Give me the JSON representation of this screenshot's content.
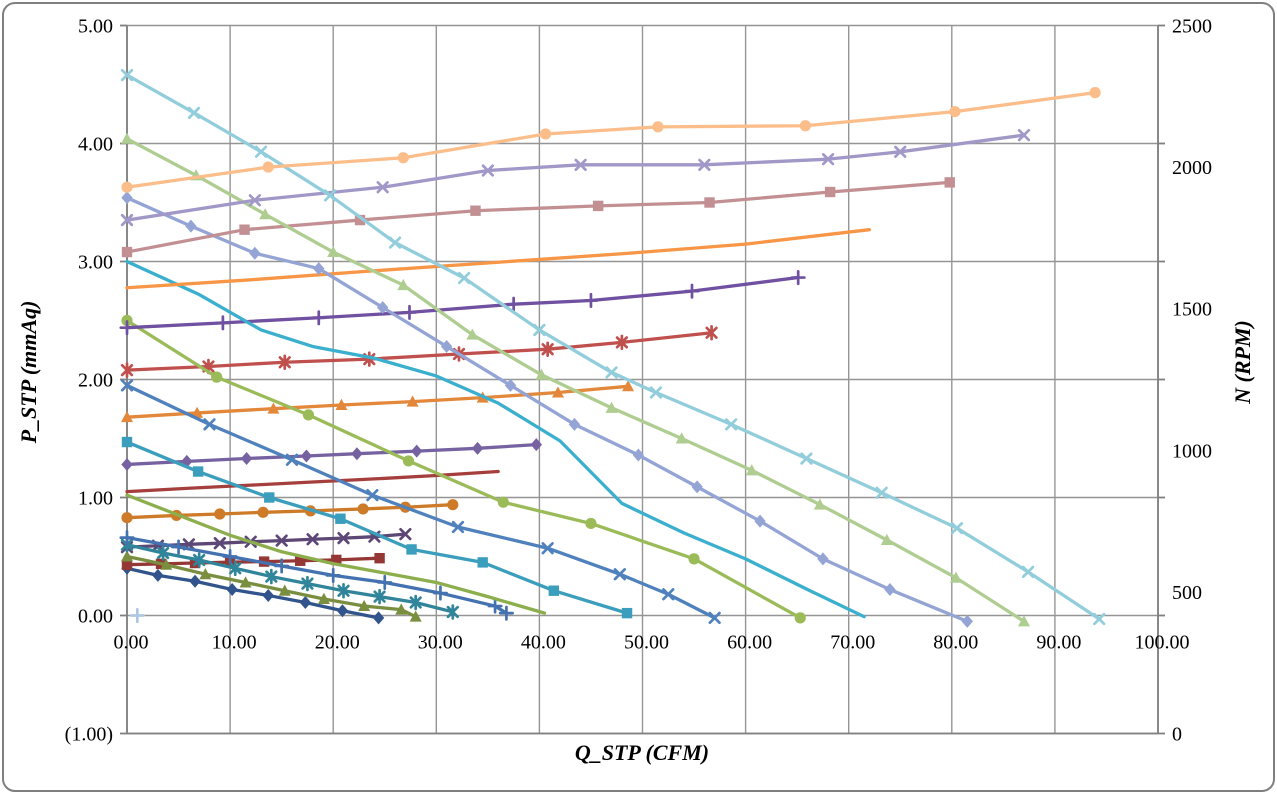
{
  "chart_data": {
    "type": "line",
    "title": "",
    "xlabel": "Q_STP (CFM)",
    "ylabel_left": "P_STP (mmAq)",
    "ylabel_right": "N (RPM)",
    "legend": "none",
    "grid": true,
    "x_axis": {
      "min": 0,
      "max": 100,
      "step": 10,
      "tick_labels": [
        "0.00",
        "10.00",
        "20.00",
        "30.00",
        "40.00",
        "50.00",
        "60.00",
        "70.00",
        "80.00",
        "90.00",
        "100.00"
      ]
    },
    "y_left_axis": {
      "min": -1,
      "max": 5,
      "step": 1,
      "tick_labels": [
        "5.00",
        "4.00",
        "3.00",
        "2.00",
        "1.00",
        "0.00",
        "(1.00)"
      ],
      "negative_label_color": "#FF0000"
    },
    "y_right_axis": {
      "min": 0,
      "max": 2500,
      "step": 500,
      "tick_labels": [
        "2500",
        "2000",
        "1500",
        "1000",
        "500",
        "0"
      ]
    },
    "axis_color": "#808080",
    "grid_color": "#959595",
    "series": [
      {
        "id": "P1",
        "axis": "left",
        "marker": "diamond",
        "color": "#31548C",
        "points": [
          [
            0,
            0.4
          ],
          [
            3,
            0.34
          ],
          [
            6.6,
            0.29
          ],
          [
            10.2,
            0.22
          ],
          [
            13.7,
            0.17
          ],
          [
            17.3,
            0.11
          ],
          [
            20.9,
            0.04
          ],
          [
            24.4,
            -0.02
          ]
        ]
      },
      {
        "id": "N1",
        "axis": "right",
        "marker": "square",
        "color": "#953734",
        "points": [
          [
            0,
            596
          ],
          [
            3.3,
            599
          ],
          [
            6.6,
            602
          ],
          [
            10,
            605
          ],
          [
            13.3,
            607
          ],
          [
            16.8,
            610
          ],
          [
            20.3,
            613
          ],
          [
            24.5,
            619
          ]
        ]
      },
      {
        "id": "P2",
        "axis": "left",
        "marker": "triangle",
        "color": "#7A8E3F",
        "points": [
          [
            0,
            0.5
          ],
          [
            3.8,
            0.43
          ],
          [
            7.6,
            0.35
          ],
          [
            11.5,
            0.28
          ],
          [
            15.3,
            0.21
          ],
          [
            19.1,
            0.14
          ],
          [
            23,
            0.08
          ],
          [
            26.6,
            0.05
          ],
          [
            28,
            -0.01
          ]
        ]
      },
      {
        "id": "N2",
        "axis": "right",
        "marker": "x",
        "color": "#5D4776",
        "points": [
          [
            0,
            658
          ],
          [
            3,
            663
          ],
          [
            6,
            668
          ],
          [
            9,
            672
          ],
          [
            12,
            677
          ],
          [
            15,
            681
          ],
          [
            18,
            686
          ],
          [
            21,
            690
          ],
          [
            24,
            695
          ],
          [
            27,
            704
          ]
        ]
      },
      {
        "id": "P3",
        "axis": "left",
        "marker": "asterisk",
        "color": "#31859B",
        "points": [
          [
            0,
            0.6
          ],
          [
            3.5,
            0.53
          ],
          [
            7,
            0.47
          ],
          [
            10.5,
            0.4
          ],
          [
            14,
            0.33
          ],
          [
            17.5,
            0.27
          ],
          [
            21,
            0.21
          ],
          [
            24.5,
            0.16
          ],
          [
            28,
            0.11
          ],
          [
            31.6,
            0.03
          ]
        ]
      },
      {
        "id": "N3",
        "axis": "right",
        "marker": "circle",
        "color": "#CE7B29",
        "points": [
          [
            0,
            762
          ],
          [
            4.8,
            770
          ],
          [
            9,
            775
          ],
          [
            13.2,
            781
          ],
          [
            17.8,
            786
          ],
          [
            22.9,
            793
          ],
          [
            27,
            799
          ],
          [
            31.6,
            808
          ]
        ]
      },
      {
        "id": "P4",
        "axis": "left",
        "marker": "plus",
        "color": "#4472B0",
        "points": [
          [
            0,
            0.66
          ],
          [
            5,
            0.58
          ],
          [
            10,
            0.5
          ],
          [
            15,
            0.42
          ],
          [
            20,
            0.34
          ],
          [
            25,
            0.28
          ],
          [
            30.4,
            0.19
          ],
          [
            35.7,
            0.08
          ],
          [
            36.8,
            0.02
          ]
        ]
      },
      {
        "id": "N4",
        "axis": "right",
        "marker": "none",
        "color": "#A53F3D",
        "points": [
          [
            0,
            854
          ],
          [
            6,
            866
          ],
          [
            12,
            877
          ],
          [
            18,
            888
          ],
          [
            24,
            899
          ],
          [
            30,
            911
          ],
          [
            36,
            925
          ]
        ]
      },
      {
        "id": "P5",
        "axis": "left",
        "marker": "none",
        "color": "#8CAE4C",
        "points": [
          [
            0,
            1.02
          ],
          [
            5,
            0.85
          ],
          [
            10,
            0.68
          ],
          [
            15,
            0.54
          ],
          [
            20,
            0.44
          ],
          [
            25,
            0.36
          ],
          [
            30,
            0.28
          ],
          [
            35,
            0.16
          ],
          [
            40.5,
            0.02
          ]
        ]
      },
      {
        "id": "N5",
        "axis": "right",
        "marker": "diamond",
        "color": "#7661A1",
        "points": [
          [
            0,
            950
          ],
          [
            5.8,
            961
          ],
          [
            11.6,
            971
          ],
          [
            17.4,
            980
          ],
          [
            22.3,
            988
          ],
          [
            28.1,
            997
          ],
          [
            34,
            1007
          ],
          [
            39.7,
            1020
          ]
        ]
      },
      {
        "id": "P6",
        "axis": "left",
        "marker": "square",
        "color": "#3B9EBD",
        "points": [
          [
            0,
            1.47
          ],
          [
            6.9,
            1.22
          ],
          [
            13.8,
            1.0
          ],
          [
            20.7,
            0.82
          ],
          [
            27.6,
            0.56
          ],
          [
            34.5,
            0.45
          ],
          [
            41.4,
            0.21
          ],
          [
            48.5,
            0.02
          ]
        ]
      },
      {
        "id": "N6",
        "axis": "right",
        "marker": "triangle",
        "color": "#E3883B",
        "points": [
          [
            0,
            1117
          ],
          [
            6.8,
            1132
          ],
          [
            14.2,
            1147
          ],
          [
            20.8,
            1160
          ],
          [
            27.7,
            1172
          ],
          [
            34.5,
            1186
          ],
          [
            41.8,
            1204
          ],
          [
            48.6,
            1226
          ]
        ]
      },
      {
        "id": "P7",
        "axis": "left",
        "marker": "x",
        "color": "#4F81BD",
        "points": [
          [
            0,
            1.95
          ],
          [
            8,
            1.62
          ],
          [
            16,
            1.32
          ],
          [
            23.8,
            1.02
          ],
          [
            32.1,
            0.75
          ],
          [
            40.8,
            0.57
          ],
          [
            47.8,
            0.35
          ],
          [
            52.5,
            0.18
          ],
          [
            57,
            -0.02
          ]
        ]
      },
      {
        "id": "N7",
        "axis": "right",
        "marker": "asterisk",
        "color": "#C0504D",
        "points": [
          [
            0,
            1283
          ],
          [
            7.9,
            1296
          ],
          [
            15.3,
            1311
          ],
          [
            23.5,
            1322
          ],
          [
            32.2,
            1340
          ],
          [
            40.8,
            1357
          ],
          [
            48,
            1381
          ],
          [
            56.7,
            1415
          ]
        ]
      },
      {
        "id": "P8",
        "axis": "left",
        "marker": "circle",
        "color": "#9BBB59",
        "points": [
          [
            0,
            2.5
          ],
          [
            8.7,
            2.02
          ],
          [
            17.6,
            1.7
          ],
          [
            27.3,
            1.31
          ],
          [
            36.5,
            0.96
          ],
          [
            45,
            0.78
          ],
          [
            55,
            0.48
          ],
          [
            65.3,
            -0.02
          ]
        ]
      },
      {
        "id": "N8",
        "axis": "right",
        "marker": "plus",
        "color": "#7050A0",
        "points": [
          [
            0,
            1433
          ],
          [
            9.3,
            1450
          ],
          [
            18.6,
            1468
          ],
          [
            27.4,
            1487
          ],
          [
            37.5,
            1516
          ],
          [
            45,
            1529
          ],
          [
            54.8,
            1562
          ],
          [
            65.1,
            1610
          ]
        ]
      },
      {
        "id": "P9",
        "axis": "left",
        "marker": "none",
        "color": "#3AAFCE",
        "points": [
          [
            0,
            3.0
          ],
          [
            7,
            2.72
          ],
          [
            13,
            2.42
          ],
          [
            18,
            2.28
          ],
          [
            24,
            2.18
          ],
          [
            30,
            2.03
          ],
          [
            36,
            1.8
          ],
          [
            42,
            1.48
          ],
          [
            48,
            0.95
          ],
          [
            54,
            0.7
          ],
          [
            60,
            0.48
          ],
          [
            66,
            0.22
          ],
          [
            71.5,
            -0.01
          ]
        ]
      },
      {
        "id": "N9",
        "axis": "right",
        "marker": "none",
        "color": "#F79646",
        "points": [
          [
            0,
            1574
          ],
          [
            12,
            1602
          ],
          [
            24,
            1634
          ],
          [
            36,
            1664
          ],
          [
            48,
            1694
          ],
          [
            60,
            1728
          ],
          [
            72,
            1779
          ]
        ]
      },
      {
        "id": "P10",
        "axis": "left",
        "marker": "diamond",
        "color": "#93A4D5",
        "points": [
          [
            0,
            3.54
          ],
          [
            6.2,
            3.3
          ],
          [
            12.4,
            3.07
          ],
          [
            18.6,
            2.94
          ],
          [
            24.8,
            2.61
          ],
          [
            31,
            2.28
          ],
          [
            37.2,
            1.95
          ],
          [
            43.4,
            1.62
          ],
          [
            49.6,
            1.36
          ],
          [
            55.3,
            1.09
          ],
          [
            61.4,
            0.8
          ],
          [
            67.5,
            0.48
          ],
          [
            74,
            0.22
          ],
          [
            81.5,
            -0.05
          ]
        ]
      },
      {
        "id": "N10",
        "axis": "right",
        "marker": "square",
        "color": "#C29093",
        "points": [
          [
            0,
            1700
          ],
          [
            11.4,
            1779
          ],
          [
            22.6,
            1813
          ],
          [
            33.8,
            1846
          ],
          [
            45.7,
            1863
          ],
          [
            56.5,
            1875
          ],
          [
            68.2,
            1912
          ],
          [
            79.8,
            1946
          ]
        ]
      },
      {
        "id": "P11",
        "axis": "left",
        "marker": "triangle",
        "color": "#AFCD91",
        "points": [
          [
            0,
            4.04
          ],
          [
            6.7,
            3.73
          ],
          [
            13.4,
            3.4
          ],
          [
            20,
            3.08
          ],
          [
            26.8,
            2.8
          ],
          [
            33.5,
            2.38
          ],
          [
            40.2,
            2.04
          ],
          [
            47,
            1.76
          ],
          [
            53.8,
            1.5
          ],
          [
            60.6,
            1.23
          ],
          [
            67.2,
            0.94
          ],
          [
            73.7,
            0.64
          ],
          [
            80.4,
            0.32
          ],
          [
            87,
            -0.05
          ]
        ]
      },
      {
        "id": "N11",
        "axis": "right",
        "marker": "x",
        "color": "#A198C8",
        "points": [
          [
            0,
            1813
          ],
          [
            12.4,
            1883
          ],
          [
            24.8,
            1929
          ],
          [
            35,
            1988
          ],
          [
            44,
            2008
          ],
          [
            56,
            2008
          ],
          [
            68,
            2028
          ],
          [
            75,
            2054
          ],
          [
            87,
            2113
          ]
        ]
      },
      {
        "id": "P12",
        "axis": "left",
        "marker": "x",
        "color": "#92CDDC",
        "points": [
          [
            0,
            4.58
          ],
          [
            6.5,
            4.26
          ],
          [
            13,
            3.93
          ],
          [
            19.7,
            3.56
          ],
          [
            26,
            3.16
          ],
          [
            32.7,
            2.86
          ],
          [
            40,
            2.42
          ],
          [
            47,
            2.06
          ],
          [
            51.3,
            1.89
          ],
          [
            58.6,
            1.62
          ],
          [
            65.9,
            1.33
          ],
          [
            73.2,
            1.04
          ],
          [
            80.5,
            0.74
          ],
          [
            87.4,
            0.37
          ],
          [
            94.3,
            -0.03
          ]
        ]
      },
      {
        "id": "N12",
        "axis": "right",
        "marker": "circle",
        "color": "#FBBE8B",
        "points": [
          [
            0,
            1929
          ],
          [
            13.7,
            2000
          ],
          [
            26.8,
            2033
          ],
          [
            40.6,
            2117
          ],
          [
            51.5,
            2142
          ],
          [
            65.8,
            2146
          ],
          [
            80.3,
            2196
          ],
          [
            93.9,
            2263
          ]
        ]
      },
      {
        "id": "point",
        "axis": "left",
        "marker": "plus",
        "color": "#AFC6E2",
        "points": [
          [
            1,
            0.0
          ]
        ]
      }
    ]
  }
}
